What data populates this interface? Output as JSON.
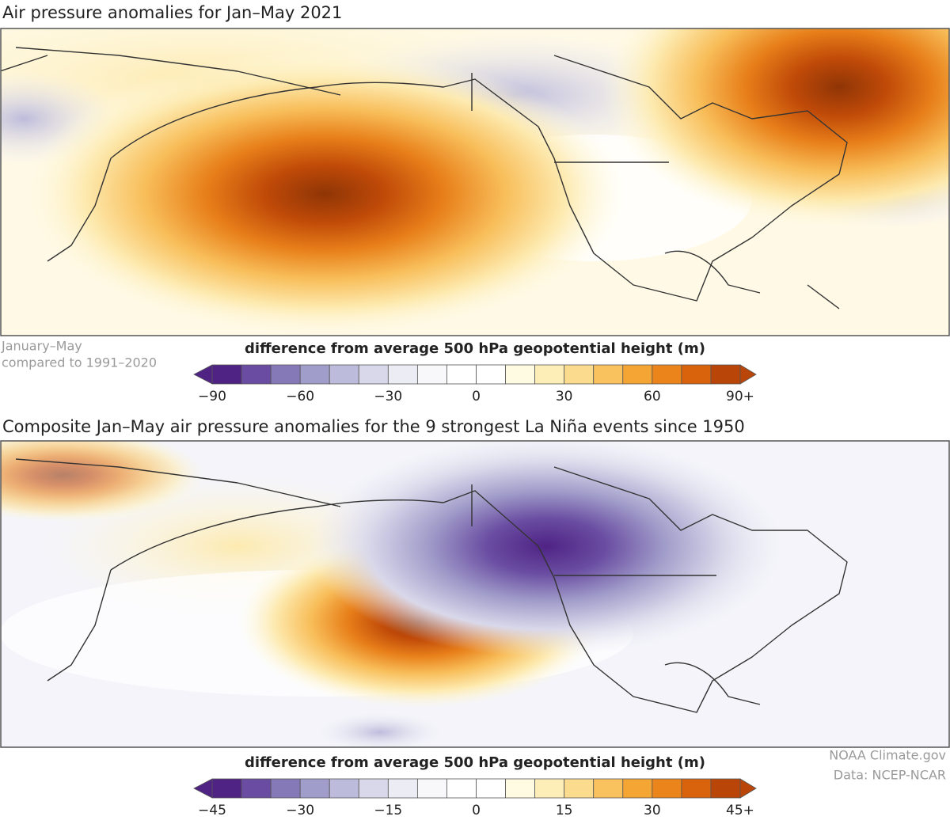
{
  "panels": [
    {
      "title": "Air pressure anomalies for Jan–May 2021",
      "note": [
        "January–May",
        "compared to 1991–2020"
      ],
      "colorbar": {
        "label": "difference from average 500 hPa geopotential height (m)",
        "ticks": [
          "−90",
          "−60",
          "−30",
          "0",
          "30",
          "60",
          "90+"
        ]
      }
    },
    {
      "title": "Composite Jan–May air pressure anomalies for the 9 strongest La Niña events since 1950",
      "colorbar": {
        "label": "difference from average 500 hPa geopotential height (m)",
        "ticks": [
          "−45",
          "−30",
          "−15",
          "0",
          "15",
          "30",
          "45+"
        ]
      }
    }
  ],
  "colors": [
    "#4f2384",
    "#6a4da2",
    "#8679b7",
    "#a19dca",
    "#bdbbdb",
    "#d9d8ea",
    "#ececf5",
    "#f8f8fb",
    "#ffffff",
    "#ffffff",
    "#fffbe2",
    "#fdeeb8",
    "#fbdc8f",
    "#f9c25e",
    "#f5a533",
    "#ec841c",
    "#d9620c",
    "#b94608"
  ],
  "credits": [
    "NOAA Climate.gov",
    "Data: NCEP-NCAR"
  ]
}
